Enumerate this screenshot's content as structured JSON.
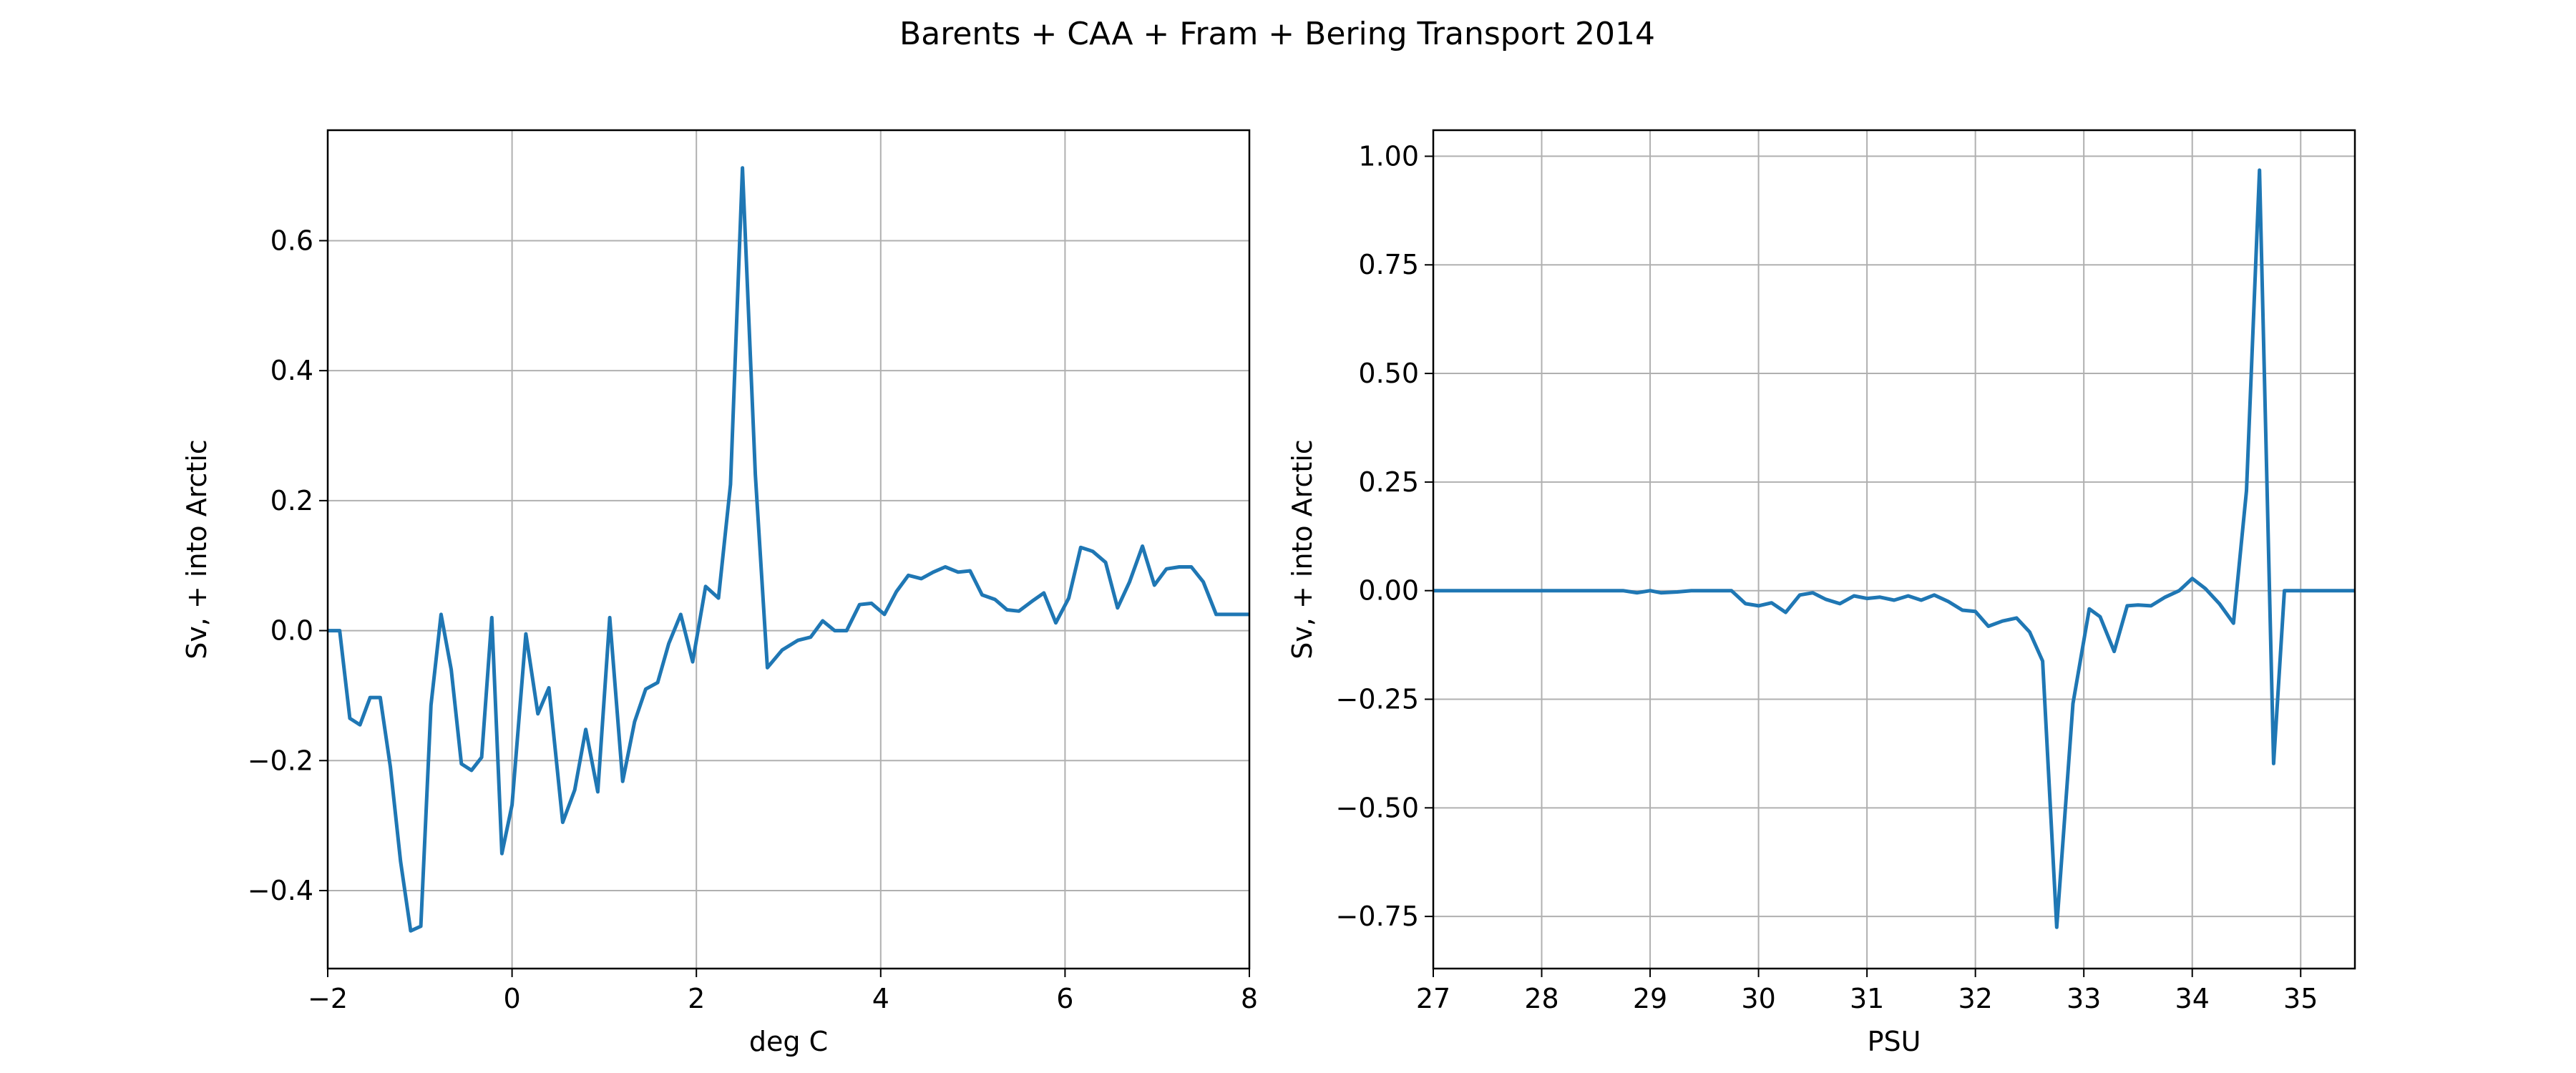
{
  "title": "Barents + CAA + Fram + Bering Transport 2014",
  "colors": {
    "line": "#1f77b4",
    "grid": "#b0b0b0",
    "axes": "#000000"
  },
  "chart_data": [
    {
      "type": "line",
      "xlabel": "deg C",
      "ylabel": "Sv, + into Arctic",
      "xlim": [
        -2,
        8
      ],
      "ylim": [
        -0.52,
        0.77
      ],
      "xticks": [
        -2,
        0,
        2,
        4,
        6,
        8
      ],
      "xtick_labels": [
        "−2",
        "0",
        "2",
        "4",
        "6",
        "8"
      ],
      "yticks": [
        -0.4,
        -0.2,
        0.0,
        0.2,
        0.4,
        0.6
      ],
      "ytick_labels": [
        "−0.4",
        "−0.2",
        "0.0",
        "0.2",
        "0.4",
        "0.6"
      ],
      "grid": true,
      "series": [
        {
          "x": [
            -2.0,
            -1.87,
            -1.76,
            -1.65,
            -1.54,
            -1.43,
            -1.32,
            -1.21,
            -1.1,
            -0.99,
            -0.88,
            -0.77,
            -0.66,
            -0.55,
            -0.44,
            -0.33,
            -0.22,
            -0.11,
            0.0,
            0.15,
            0.28,
            0.4,
            0.55,
            0.68,
            0.8,
            0.93,
            1.06,
            1.2,
            1.33,
            1.45,
            1.58,
            1.7,
            1.83,
            1.96,
            2.1,
            2.24,
            2.37,
            2.5,
            2.64,
            2.77,
            2.93,
            3.1,
            3.24,
            3.37,
            3.5,
            3.63,
            3.77,
            3.9,
            4.04,
            4.17,
            4.3,
            4.44,
            4.57,
            4.7,
            4.84,
            4.97,
            5.1,
            5.24,
            5.37,
            5.5,
            5.64,
            5.77,
            5.9,
            6.04,
            6.17,
            6.3,
            6.44,
            6.57,
            6.7,
            6.84,
            6.97,
            7.1,
            7.24,
            7.37,
            7.5,
            7.64,
            7.77,
            7.9,
            8.0
          ],
          "y": [
            0.0,
            0.0,
            -0.135,
            -0.145,
            -0.103,
            -0.103,
            -0.21,
            -0.355,
            -0.462,
            -0.455,
            -0.115,
            0.025,
            -0.06,
            -0.205,
            -0.215,
            -0.195,
            0.02,
            -0.343,
            -0.268,
            -0.005,
            -0.128,
            -0.088,
            -0.295,
            -0.245,
            -0.152,
            -0.248,
            0.02,
            -0.232,
            -0.14,
            -0.09,
            -0.08,
            -0.02,
            0.025,
            -0.048,
            0.068,
            0.05,
            0.225,
            0.712,
            0.24,
            -0.057,
            -0.03,
            -0.015,
            -0.01,
            0.015,
            0.0,
            0.0,
            0.04,
            0.042,
            0.025,
            0.06,
            0.085,
            0.08,
            0.09,
            0.098,
            0.09,
            0.092,
            0.055,
            0.048,
            0.032,
            0.03,
            0.045,
            0.058,
            0.012,
            0.05,
            0.128,
            0.122,
            0.105,
            0.035,
            0.075,
            0.13,
            0.07,
            0.095,
            0.098,
            0.098,
            0.075,
            0.025,
            0.025,
            0.025,
            0.025
          ]
        }
      ]
    },
    {
      "type": "line",
      "xlabel": "PSU",
      "ylabel": "Sv, + into Arctic",
      "xlim": [
        27,
        35.5
      ],
      "ylim": [
        -0.87,
        1.06
      ],
      "xticks": [
        27,
        28,
        29,
        30,
        31,
        32,
        33,
        34,
        35
      ],
      "xtick_labels": [
        "27",
        "28",
        "29",
        "30",
        "31",
        "32",
        "33",
        "34",
        "35"
      ],
      "yticks": [
        -0.75,
        -0.5,
        -0.25,
        0.0,
        0.25,
        0.5,
        0.75,
        1.0
      ],
      "ytick_labels": [
        "−0.75",
        "−0.50",
        "−0.25",
        "0.00",
        "0.25",
        "0.50",
        "0.75",
        "1.00"
      ],
      "grid": true,
      "series": [
        {
          "x": [
            27.0,
            27.5,
            28.0,
            28.5,
            28.75,
            28.88,
            29.0,
            29.1,
            29.25,
            29.38,
            29.5,
            29.62,
            29.75,
            29.88,
            30.0,
            30.12,
            30.25,
            30.38,
            30.5,
            30.62,
            30.75,
            30.88,
            31.0,
            31.12,
            31.25,
            31.38,
            31.5,
            31.62,
            31.75,
            31.88,
            32.0,
            32.12,
            32.25,
            32.38,
            32.5,
            32.62,
            32.75,
            32.9,
            33.05,
            33.15,
            33.28,
            33.4,
            33.5,
            33.62,
            33.75,
            33.88,
            34.0,
            34.12,
            34.25,
            34.38,
            34.5,
            34.62,
            34.75,
            34.85,
            34.98,
            35.1,
            35.2,
            35.5
          ],
          "y": [
            0.0,
            0.0,
            0.0,
            0.0,
            0.0,
            -0.005,
            0.0,
            -0.005,
            -0.003,
            0.0,
            0.0,
            0.0,
            0.0,
            -0.03,
            -0.035,
            -0.028,
            -0.05,
            -0.01,
            -0.005,
            -0.02,
            -0.03,
            -0.012,
            -0.018,
            -0.015,
            -0.022,
            -0.012,
            -0.022,
            -0.01,
            -0.025,
            -0.045,
            -0.048,
            -0.082,
            -0.07,
            -0.063,
            -0.095,
            -0.162,
            -0.775,
            -0.26,
            -0.042,
            -0.06,
            -0.14,
            -0.035,
            -0.033,
            -0.035,
            -0.015,
            0.0,
            0.028,
            0.005,
            -0.03,
            -0.075,
            0.23,
            0.968,
            -0.398,
            0.0,
            0.0,
            0.0,
            0.0,
            0.0
          ]
        }
      ]
    }
  ]
}
